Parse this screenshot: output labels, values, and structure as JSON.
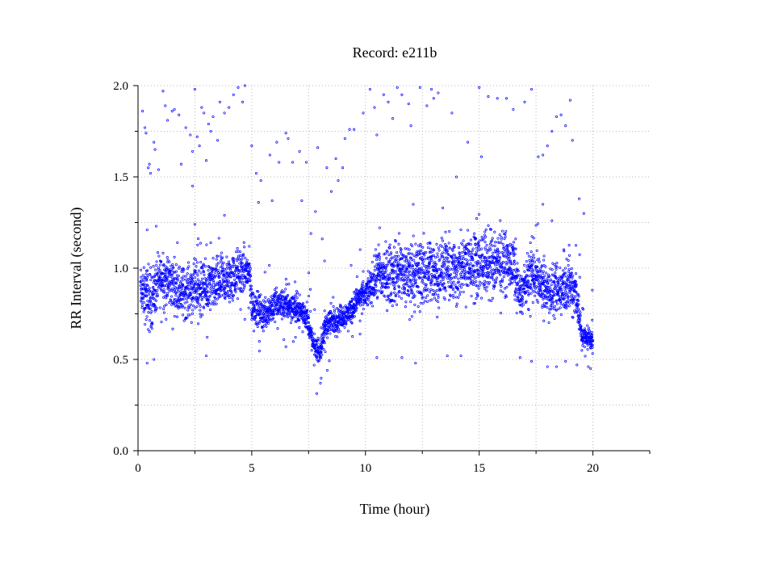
{
  "chart_data": {
    "type": "scatter",
    "title": "Record:  e211b",
    "xlabel": "Time (hour)",
    "ylabel": "RR Interval (second)",
    "xlim": [
      0,
      22.5
    ],
    "ylim": [
      0,
      2.0
    ],
    "x_ticks": [
      0,
      5,
      10,
      15,
      20
    ],
    "x_tick_labels": [
      "0",
      "5",
      "10",
      "15",
      "20"
    ],
    "x_minor_ticks": [
      2.5,
      7.5,
      12.5,
      17.5,
      22.5
    ],
    "y_ticks": [
      0.0,
      0.5,
      1.0,
      1.5,
      2.0
    ],
    "y_tick_labels": [
      "0.0",
      "0.5",
      "1.0",
      "1.5",
      "2.0"
    ],
    "y_minor_ticks": [
      0.25,
      0.75,
      1.25,
      1.75
    ],
    "grid": true,
    "legend": "none",
    "series_color": "#0000ff",
    "trend": [
      [
        0.1,
        0.88,
        0.1
      ],
      [
        0.5,
        0.82,
        0.15
      ],
      [
        1.0,
        0.95,
        0.12
      ],
      [
        1.5,
        0.92,
        0.12
      ],
      [
        2.0,
        0.86,
        0.12
      ],
      [
        2.5,
        0.9,
        0.12
      ],
      [
        3.0,
        0.88,
        0.12
      ],
      [
        3.5,
        0.92,
        0.12
      ],
      [
        4.0,
        0.93,
        0.12
      ],
      [
        4.5,
        0.98,
        0.12
      ],
      [
        4.9,
        0.98,
        0.1
      ],
      [
        5.0,
        0.8,
        0.08
      ],
      [
        5.5,
        0.75,
        0.08
      ],
      [
        6.0,
        0.8,
        0.08
      ],
      [
        6.5,
        0.8,
        0.07
      ],
      [
        7.0,
        0.78,
        0.07
      ],
      [
        7.4,
        0.74,
        0.06
      ],
      [
        7.7,
        0.58,
        0.05
      ],
      [
        8.0,
        0.54,
        0.05
      ],
      [
        8.3,
        0.7,
        0.07
      ],
      [
        8.8,
        0.72,
        0.06
      ],
      [
        9.3,
        0.76,
        0.06
      ],
      [
        9.7,
        0.84,
        0.06
      ],
      [
        10.0,
        0.85,
        0.06
      ],
      [
        10.5,
        0.96,
        0.12
      ],
      [
        11.0,
        0.96,
        0.15
      ],
      [
        11.5,
        0.98,
        0.15
      ],
      [
        12.0,
        0.96,
        0.16
      ],
      [
        12.5,
        0.98,
        0.16
      ],
      [
        13.0,
        0.97,
        0.15
      ],
      [
        13.5,
        1.0,
        0.15
      ],
      [
        14.0,
        0.98,
        0.15
      ],
      [
        14.5,
        1.02,
        0.15
      ],
      [
        15.0,
        1.02,
        0.15
      ],
      [
        15.5,
        1.02,
        0.15
      ],
      [
        16.0,
        1.05,
        0.15
      ],
      [
        16.5,
        1.0,
        0.12
      ],
      [
        16.8,
        0.85,
        0.1
      ],
      [
        17.3,
        0.98,
        0.12
      ],
      [
        17.8,
        0.9,
        0.1
      ],
      [
        18.3,
        0.86,
        0.12
      ],
      [
        18.8,
        0.9,
        0.12
      ],
      [
        19.1,
        0.9,
        0.12
      ],
      [
        19.3,
        0.85,
        0.12
      ],
      [
        19.5,
        0.62,
        0.06
      ],
      [
        20.0,
        0.62,
        0.06
      ]
    ],
    "outliers": [
      [
        0.2,
        1.86
      ],
      [
        0.3,
        1.77
      ],
      [
        0.35,
        1.74
      ],
      [
        0.45,
        1.55
      ],
      [
        0.5,
        1.57
      ],
      [
        0.55,
        1.52
      ],
      [
        0.7,
        1.69
      ],
      [
        0.75,
        1.65
      ],
      [
        0.9,
        1.54
      ],
      [
        1.1,
        1.97
      ],
      [
        1.2,
        1.89
      ],
      [
        1.3,
        1.81
      ],
      [
        1.5,
        1.86
      ],
      [
        1.6,
        1.87
      ],
      [
        1.8,
        1.84
      ],
      [
        1.9,
        1.57
      ],
      [
        2.1,
        1.77
      ],
      [
        2.3,
        1.73
      ],
      [
        2.4,
        1.64
      ],
      [
        2.5,
        1.98
      ],
      [
        2.6,
        1.72
      ],
      [
        2.7,
        1.67
      ],
      [
        2.8,
        1.88
      ],
      [
        2.9,
        1.85
      ],
      [
        3.1,
        1.79
      ],
      [
        3.2,
        1.75
      ],
      [
        3.3,
        1.83
      ],
      [
        3.5,
        1.7
      ],
      [
        3.6,
        1.91
      ],
      [
        3.8,
        1.85
      ],
      [
        4.0,
        1.88
      ],
      [
        4.2,
        1.95
      ],
      [
        4.4,
        1.99
      ],
      [
        4.6,
        1.91
      ],
      [
        4.7,
        2.0
      ],
      [
        3.0,
        1.59
      ],
      [
        2.4,
        1.45
      ],
      [
        3.8,
        1.29
      ],
      [
        2.5,
        1.24
      ],
      [
        0.4,
        0.48
      ],
      [
        0.7,
        0.5
      ],
      [
        3.0,
        0.52
      ],
      [
        5.0,
        1.67
      ],
      [
        5.2,
        1.52
      ],
      [
        5.3,
        1.36
      ],
      [
        5.4,
        1.48
      ],
      [
        5.8,
        1.62
      ],
      [
        5.9,
        1.37
      ],
      [
        6.1,
        1.69
      ],
      [
        6.2,
        1.58
      ],
      [
        6.5,
        1.74
      ],
      [
        6.6,
        1.71
      ],
      [
        6.8,
        1.58
      ],
      [
        7.1,
        1.64
      ],
      [
        7.2,
        1.37
      ],
      [
        7.4,
        1.58
      ],
      [
        7.6,
        1.19
      ],
      [
        7.8,
        1.31
      ],
      [
        7.9,
        1.66
      ],
      [
        8.1,
        1.16
      ],
      [
        8.3,
        1.55
      ],
      [
        8.5,
        1.42
      ],
      [
        8.7,
        1.6
      ],
      [
        8.8,
        1.48
      ],
      [
        9.0,
        1.55
      ],
      [
        9.1,
        1.71
      ],
      [
        9.3,
        1.76
      ],
      [
        9.5,
        1.76
      ],
      [
        6.5,
        0.57
      ],
      [
        8.2,
        1.04
      ],
      [
        9.9,
        1.85
      ],
      [
        10.2,
        1.98
      ],
      [
        10.4,
        1.88
      ],
      [
        10.5,
        1.73
      ],
      [
        10.8,
        1.95
      ],
      [
        11.0,
        1.91
      ],
      [
        11.2,
        1.82
      ],
      [
        11.4,
        1.99
      ],
      [
        11.6,
        1.95
      ],
      [
        11.9,
        1.9
      ],
      [
        12.0,
        1.78
      ],
      [
        12.1,
        1.35
      ],
      [
        12.4,
        1.99
      ],
      [
        12.7,
        1.89
      ],
      [
        12.9,
        1.98
      ],
      [
        13.0,
        1.93
      ],
      [
        13.2,
        1.96
      ],
      [
        13.4,
        1.33
      ],
      [
        13.8,
        1.85
      ],
      [
        14.0,
        1.5
      ],
      [
        14.5,
        1.69
      ],
      [
        15.0,
        1.99
      ],
      [
        15.1,
        1.61
      ],
      [
        15.4,
        1.94
      ],
      [
        15.8,
        1.93
      ],
      [
        16.2,
        1.93
      ],
      [
        16.5,
        1.87
      ],
      [
        17.0,
        1.91
      ],
      [
        17.3,
        1.98
      ],
      [
        17.6,
        1.61
      ],
      [
        17.8,
        1.62
      ],
      [
        18.0,
        1.67
      ],
      [
        18.2,
        1.75
      ],
      [
        18.4,
        1.83
      ],
      [
        18.6,
        1.84
      ],
      [
        18.8,
        1.78
      ],
      [
        19.0,
        1.92
      ],
      [
        19.1,
        1.7
      ],
      [
        19.4,
        1.38
      ],
      [
        19.6,
        1.3
      ],
      [
        10.5,
        0.51
      ],
      [
        11.6,
        0.51
      ],
      [
        12.2,
        0.48
      ],
      [
        13.6,
        0.52
      ],
      [
        14.2,
        0.52
      ],
      [
        16.8,
        0.51
      ],
      [
        17.3,
        0.49
      ],
      [
        18.0,
        0.46
      ],
      [
        18.4,
        0.46
      ],
      [
        18.8,
        0.49
      ],
      [
        19.3,
        0.47
      ],
      [
        19.8,
        0.46
      ],
      [
        19.9,
        0.45
      ],
      [
        17.8,
        1.35
      ],
      [
        18.2,
        1.26
      ],
      [
        16.6,
        1.16
      ],
      [
        0.4,
        1.21
      ],
      [
        0.8,
        1.23
      ]
    ]
  }
}
